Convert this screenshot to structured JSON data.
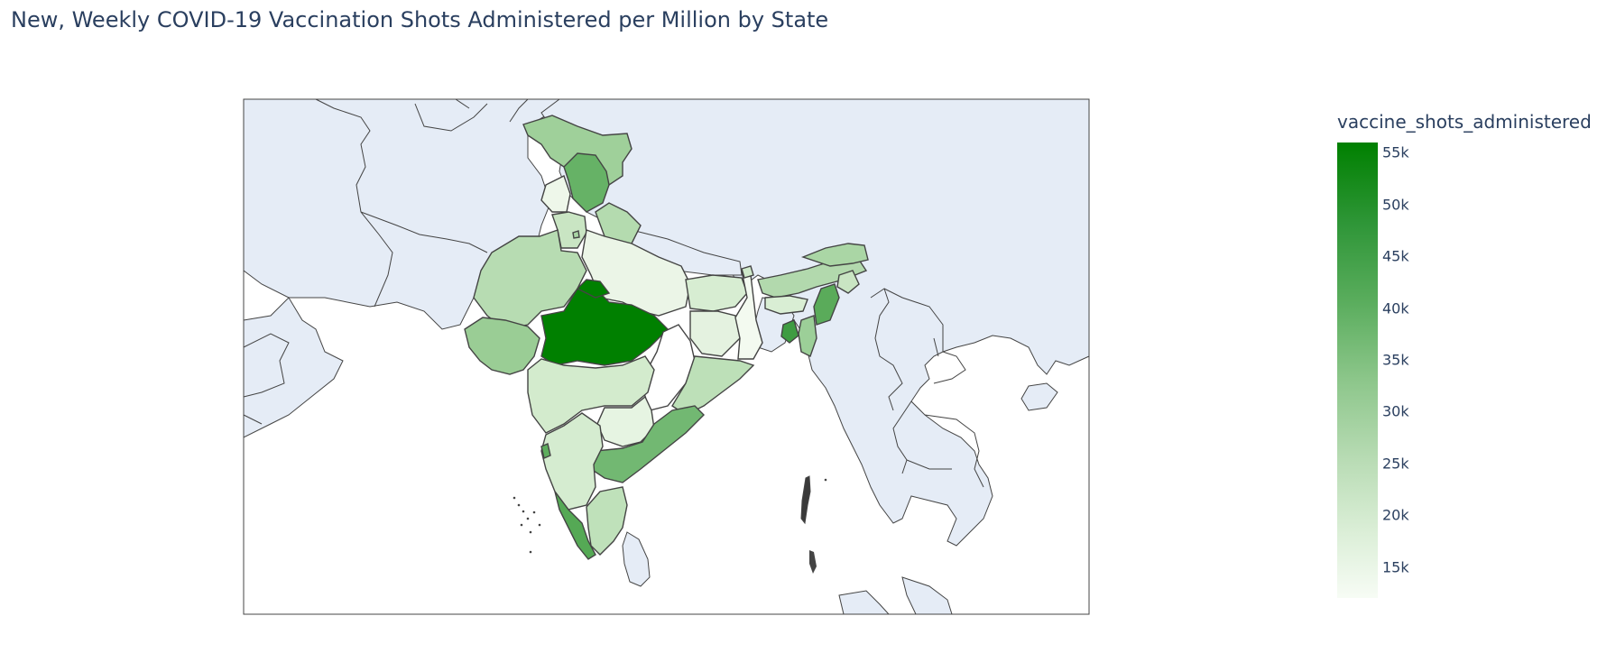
{
  "title": "New, Weekly COVID-19 Vaccination Shots Administered per Million by State",
  "colorbar": {
    "title": "vaccine_shots_administered",
    "ticks": [
      "55k",
      "50k",
      "45k",
      "40k",
      "35k",
      "30k",
      "25k",
      "20k",
      "15k"
    ],
    "tick_values": [
      55000,
      50000,
      45000,
      40000,
      35000,
      30000,
      25000,
      20000,
      15000
    ],
    "range": [
      12000,
      56000
    ],
    "colors": {
      "high": "#008000",
      "low": "#f7fcf5"
    }
  },
  "map": {
    "background_land": "#e5ecf6",
    "border_color": "#444444",
    "estimated_regions": [
      {
        "region": "Madhya Pradesh",
        "level": 56000
      },
      {
        "region": "Jammu and Kashmir",
        "level": 33000
      },
      {
        "region": "Himachal Pradesh",
        "level": 40000
      },
      {
        "region": "Uttarakhand",
        "level": 30000
      },
      {
        "region": "Punjab",
        "level": 15000
      },
      {
        "region": "Haryana",
        "level": 23000
      },
      {
        "region": "Rajasthan",
        "level": 26000
      },
      {
        "region": "Gujarat",
        "level": 33000
      },
      {
        "region": "Uttar Pradesh",
        "level": 15000
      },
      {
        "region": "Bihar",
        "level": 20000
      },
      {
        "region": "Jharkhand",
        "level": 17000
      },
      {
        "region": "West Bengal",
        "level": 14000
      },
      {
        "region": "Odisha",
        "level": 25000
      },
      {
        "region": "Chhattisgarh",
        "level": 12000
      },
      {
        "region": "Maharashtra",
        "level": 20000
      },
      {
        "region": "Telangana",
        "level": 16000
      },
      {
        "region": "Andhra Pradesh",
        "level": 38000
      },
      {
        "region": "Karnataka",
        "level": 20000
      },
      {
        "region": "Kerala",
        "level": 42000
      },
      {
        "region": "Tamil Nadu",
        "level": 25000
      },
      {
        "region": "Assam",
        "level": 26000
      },
      {
        "region": "Manipur",
        "level": 40000
      },
      {
        "region": "Tripura",
        "level": 42000
      }
    ]
  }
}
